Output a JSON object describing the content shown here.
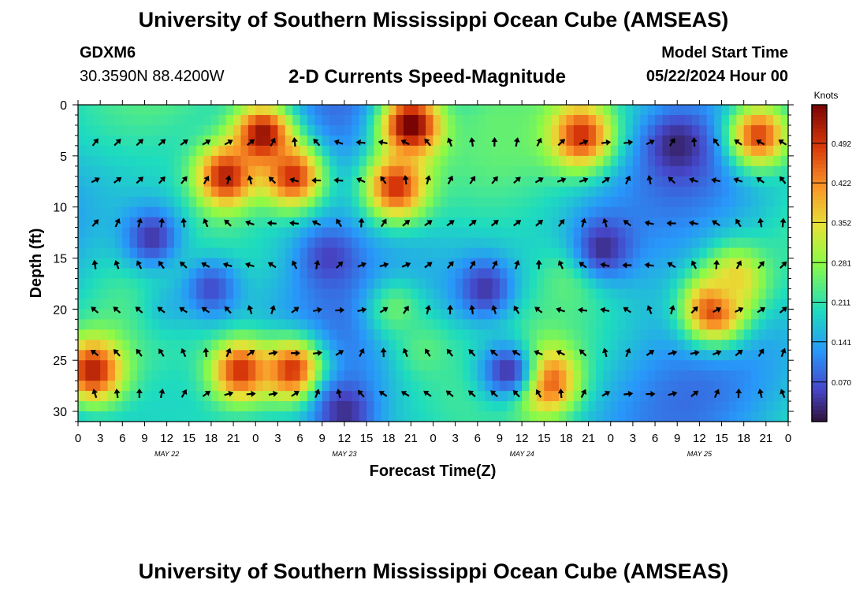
{
  "header": {
    "title": "University of Southern Mississippi Ocean Cube (AMSEAS)",
    "footer_title": "University of Southern Mississippi Ocean Cube (AMSEAS)",
    "station": "GDXM6",
    "location": "30.3590N  88.4200W",
    "subtitle": "2-D Currents Speed-Magnitude",
    "start_label": "Model Start Time",
    "start_value": "05/22/2024 Hour 00"
  },
  "chart_data": {
    "type": "heatmap",
    "title": "2-D Currents Speed-Magnitude",
    "xlabel": "Forecast Time(Z)",
    "ylabel": "Depth (ft)",
    "colorbar_label": "Knots",
    "colorbar_ticks": [
      "0.492",
      "0.422",
      "0.352",
      "0.281",
      "0.211",
      "0.141",
      "0.070"
    ],
    "colorbar_tick_values": [
      0.492,
      0.422,
      0.352,
      0.281,
      0.211,
      0.141,
      0.07
    ],
    "colorbar_range": [
      0.0,
      0.56
    ],
    "x_range_hours": [
      0,
      96
    ],
    "y_range_ft": [
      0,
      31
    ],
    "x_tick_labels": [
      "0",
      "3",
      "6",
      "9",
      "12",
      "15",
      "18",
      "21",
      "0",
      "3",
      "6",
      "9",
      "12",
      "15",
      "18",
      "21",
      "0",
      "3",
      "6",
      "9",
      "12",
      "15",
      "18",
      "21",
      "0",
      "3",
      "6",
      "9",
      "12",
      "15",
      "18",
      "21",
      "0"
    ],
    "x_tick_hours": [
      0,
      3,
      6,
      9,
      12,
      15,
      18,
      21,
      24,
      27,
      30,
      33,
      36,
      39,
      42,
      45,
      48,
      51,
      54,
      57,
      60,
      63,
      66,
      69,
      72,
      75,
      78,
      81,
      84,
      87,
      90,
      93,
      96
    ],
    "day_labels": [
      {
        "label": "MAY 22",
        "hour": 12
      },
      {
        "label": "MAY 23",
        "hour": 36
      },
      {
        "label": "MAY 24",
        "hour": 60
      },
      {
        "label": "MAY 25",
        "hour": 84
      }
    ],
    "y_ticks": [
      0,
      5,
      10,
      15,
      20,
      25,
      30
    ],
    "arrow_depths_ft": [
      3.7,
      7.4,
      11.6,
      15.7,
      20.1,
      24.3,
      28.3
    ],
    "arrow_hours": [
      3,
      6,
      9,
      12,
      15,
      18,
      21,
      24,
      27,
      30,
      33,
      36,
      39,
      42,
      45,
      48,
      51,
      54,
      57,
      60,
      63,
      66,
      69,
      72,
      75,
      78,
      81,
      84,
      87,
      90,
      93,
      96
    ],
    "hotspots": [
      {
        "hour": 25,
        "depth": 3,
        "speed": 0.55
      },
      {
        "hour": 20,
        "depth": 7,
        "speed": 0.52
      },
      {
        "hour": 29,
        "depth": 7,
        "speed": 0.5
      },
      {
        "hour": 45,
        "depth": 2,
        "speed": 0.58
      },
      {
        "hour": 43,
        "depth": 8,
        "speed": 0.5
      },
      {
        "hour": 68,
        "depth": 3,
        "speed": 0.5
      },
      {
        "hour": 92,
        "depth": 3,
        "speed": 0.48
      },
      {
        "hour": 86,
        "depth": 20,
        "speed": 0.5
      },
      {
        "hour": 89,
        "depth": 17,
        "speed": 0.36
      },
      {
        "hour": 2,
        "depth": 26,
        "speed": 0.52
      },
      {
        "hour": 22,
        "depth": 26,
        "speed": 0.5
      },
      {
        "hour": 29,
        "depth": 26,
        "speed": 0.5
      },
      {
        "hour": 63,
        "depth": 27,
        "speed": 0.52
      },
      {
        "hour": 47,
        "depth": 24,
        "speed": 0.24
      },
      {
        "hour": 43,
        "depth": 20,
        "speed": 0.25
      },
      {
        "hour": 57,
        "depth": 2,
        "speed": 0.25
      },
      {
        "hour": 12,
        "depth": 20,
        "speed": 0.17
      },
      {
        "hour": 67,
        "depth": 17,
        "speed": 0.26
      }
    ],
    "coldspots": [
      {
        "hour": 81,
        "depth": 4,
        "speed": 0.02
      },
      {
        "hour": 71,
        "depth": 14,
        "speed": 0.03
      },
      {
        "hour": 10,
        "depth": 13,
        "speed": 0.04
      },
      {
        "hour": 55,
        "depth": 18,
        "speed": 0.04
      },
      {
        "hour": 36,
        "depth": 30,
        "speed": 0.03
      },
      {
        "hour": 34,
        "depth": 15,
        "speed": 0.05
      },
      {
        "hour": 58,
        "depth": 26,
        "speed": 0.04
      },
      {
        "hour": 18,
        "depth": 18,
        "speed": 0.06
      }
    ]
  }
}
